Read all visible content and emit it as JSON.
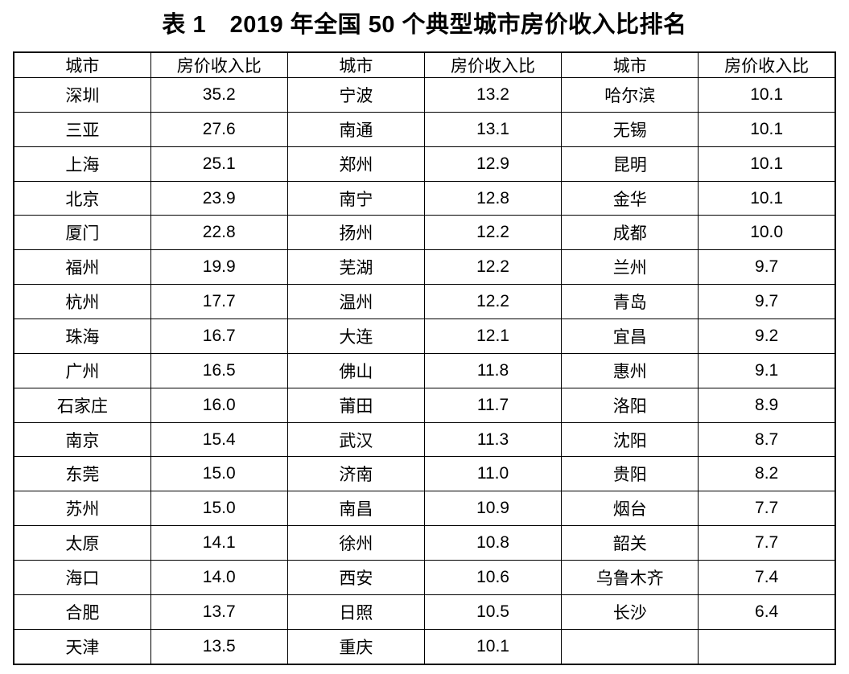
{
  "title": "表 1　2019 年全国 50 个典型城市房价收入比排名",
  "table": {
    "headers": [
      "城市",
      "房价收入比",
      "城市",
      "房价收入比",
      "城市",
      "房价收入比"
    ],
    "rows": [
      [
        "深圳",
        "35.2",
        "宁波",
        "13.2",
        "哈尔滨",
        "10.1"
      ],
      [
        "三亚",
        "27.6",
        "南通",
        "13.1",
        "无锡",
        "10.1"
      ],
      [
        "上海",
        "25.1",
        "郑州",
        "12.9",
        "昆明",
        "10.1"
      ],
      [
        "北京",
        "23.9",
        "南宁",
        "12.8",
        "金华",
        "10.1"
      ],
      [
        "厦门",
        "22.8",
        "扬州",
        "12.2",
        "成都",
        "10.0"
      ],
      [
        "福州",
        "19.9",
        "芜湖",
        "12.2",
        "兰州",
        "9.7"
      ],
      [
        "杭州",
        "17.7",
        "温州",
        "12.2",
        "青岛",
        "9.7"
      ],
      [
        "珠海",
        "16.7",
        "大连",
        "12.1",
        "宜昌",
        "9.2"
      ],
      [
        "广州",
        "16.5",
        "佛山",
        "11.8",
        "惠州",
        "9.1"
      ],
      [
        "石家庄",
        "16.0",
        "莆田",
        "11.7",
        "洛阳",
        "8.9"
      ],
      [
        "南京",
        "15.4",
        "武汉",
        "11.3",
        "沈阳",
        "8.7"
      ],
      [
        "东莞",
        "15.0",
        "济南",
        "11.0",
        "贵阳",
        "8.2"
      ],
      [
        "苏州",
        "15.0",
        "南昌",
        "10.9",
        "烟台",
        "7.7"
      ],
      [
        "太原",
        "14.1",
        "徐州",
        "10.8",
        "韶关",
        "7.7"
      ],
      [
        "海口",
        "14.0",
        "西安",
        "10.6",
        "乌鲁木齐",
        "7.4"
      ],
      [
        "合肥",
        "13.7",
        "日照",
        "10.5",
        "长沙",
        "6.4"
      ],
      [
        "天津",
        "13.5",
        "重庆",
        "10.1",
        "",
        ""
      ]
    ]
  }
}
